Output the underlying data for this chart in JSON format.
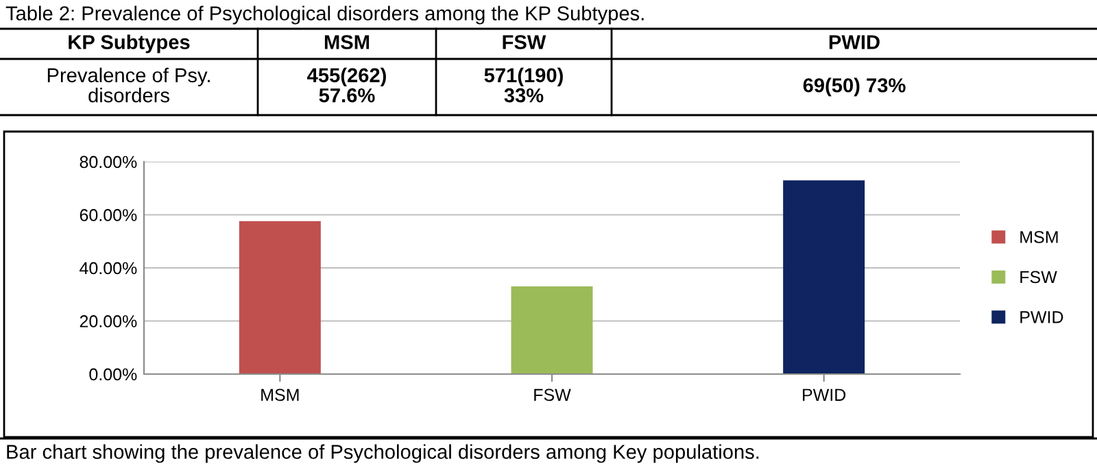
{
  "chart_data": {
    "type": "bar",
    "title": "Table 2: Prevalence of Psychological disorders among the KP Subtypes.",
    "categories": [
      "MSM",
      "FSW",
      "PWID"
    ],
    "series": [
      {
        "name": "MSM",
        "color": "#c0504d",
        "values": [
          57.6,
          null,
          null
        ]
      },
      {
        "name": "FSW",
        "color": "#9bbb59",
        "values": [
          null,
          33,
          null
        ]
      },
      {
        "name": "PWID",
        "color": "#0f2460",
        "values": [
          null,
          null,
          73
        ]
      }
    ],
    "ylim": [
      0,
      80
    ],
    "yticks": [
      {
        "value": 0,
        "label": "0.00%"
      },
      {
        "value": 20,
        "label": "20.00%"
      },
      {
        "value": 40,
        "label": "40.00%"
      },
      {
        "value": 60,
        "label": "60.00%"
      },
      {
        "value": 80,
        "label": "80.00%"
      }
    ],
    "grid": "y",
    "legend": "right",
    "annotations": [
      "KP Subtypes",
      "MSM",
      "FSW",
      "PWID",
      "Prevalence of Psy.\ndisorders",
      "455(262)\n57.6%",
      "571(190)\n33%",
      "69(50) 73%",
      "Bar chart showing the prevalence of Psychological disorders among Key populations."
    ]
  }
}
